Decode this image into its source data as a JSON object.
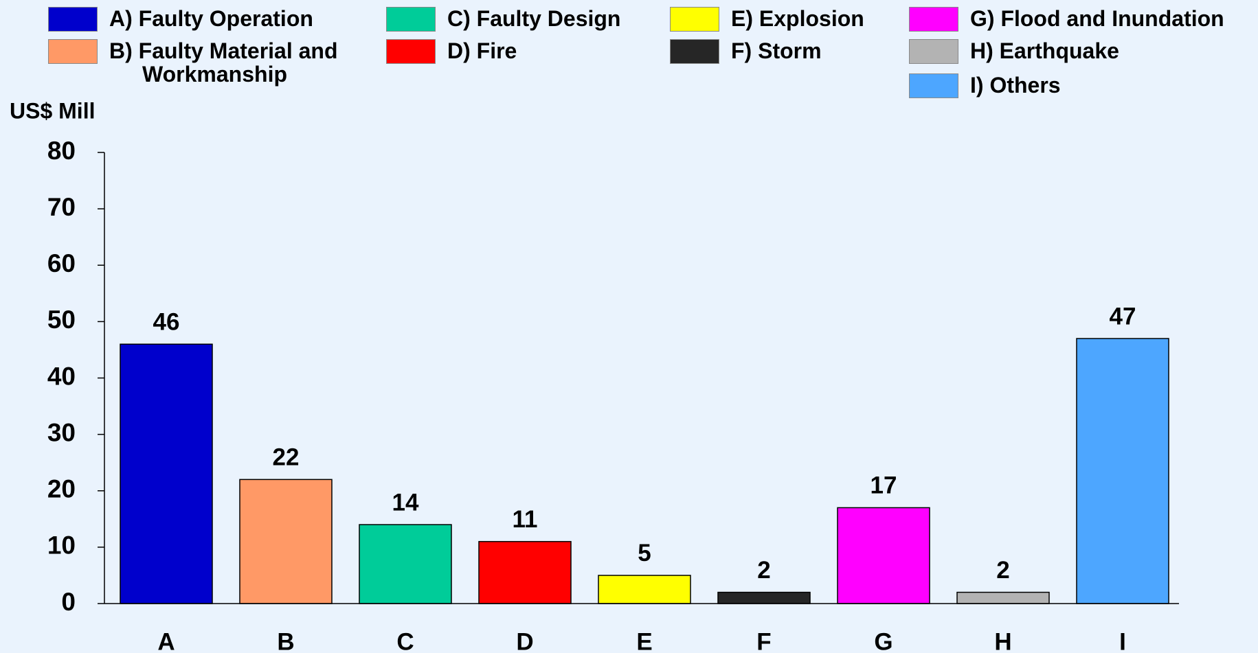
{
  "chart_data": {
    "type": "bar",
    "y_axis_label": "US$ Mill",
    "categories": [
      "A",
      "B",
      "C",
      "D",
      "E",
      "F",
      "G",
      "H",
      "I"
    ],
    "values": [
      46,
      22,
      14,
      11,
      5,
      2,
      17,
      2,
      47
    ],
    "colors": [
      "#0000cc",
      "#ff9966",
      "#00cc99",
      "#ff0000",
      "#ffff00",
      "#262626",
      "#ff00ff",
      "#b3b3b3",
      "#4da6ff"
    ],
    "legend": [
      "A) Faulty Operation",
      "B) Faulty Material and Workmanship",
      "C) Faulty Design",
      "D) Fire",
      "E) Explosion",
      "F) Storm",
      "G) Flood and Inundation",
      "H) Earthquake",
      "I) Others"
    ],
    "ylim": [
      0,
      80
    ],
    "yticks": [
      0,
      10,
      20,
      30,
      40,
      50,
      60,
      70,
      80
    ]
  }
}
